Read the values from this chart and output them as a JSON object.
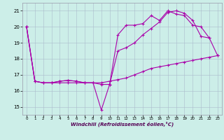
{
  "xlabel": "Windchill (Refroidissement éolien,°C)",
  "x_hours": [
    0,
    1,
    2,
    3,
    4,
    5,
    6,
    7,
    8,
    9,
    10,
    11,
    12,
    13,
    14,
    15,
    16,
    17,
    18,
    19,
    20,
    21,
    22,
    23
  ],
  "line1": [
    20.0,
    16.6,
    16.5,
    16.5,
    16.6,
    16.65,
    16.6,
    16.5,
    16.5,
    14.8,
    16.4,
    19.5,
    20.1,
    20.1,
    20.2,
    20.7,
    20.4,
    21.0,
    20.8,
    20.7,
    20.1,
    20.0,
    19.3,
    null
  ],
  "line2": [
    20.0,
    16.6,
    16.5,
    16.5,
    16.6,
    16.65,
    16.6,
    16.5,
    16.5,
    16.4,
    16.4,
    18.5,
    18.7,
    19.0,
    19.5,
    19.9,
    20.3,
    20.9,
    21.0,
    20.85,
    20.4,
    19.4,
    19.3,
    18.2
  ],
  "line3": [
    20.0,
    16.6,
    16.5,
    16.5,
    16.5,
    16.5,
    16.5,
    16.5,
    16.5,
    16.5,
    16.6,
    16.7,
    16.8,
    17.0,
    17.2,
    17.4,
    17.5,
    17.6,
    17.7,
    17.8,
    17.9,
    18.0,
    18.1,
    18.2
  ],
  "line_color": "#aa00aa",
  "bg_color": "#cceee8",
  "grid_color": "#aabbcc",
  "ylim": [
    14.5,
    21.5
  ],
  "yticks": [
    15,
    16,
    17,
    18,
    19,
    20,
    21
  ],
  "xticks": [
    0,
    1,
    2,
    3,
    4,
    5,
    6,
    7,
    8,
    9,
    10,
    11,
    12,
    13,
    14,
    15,
    16,
    17,
    18,
    19,
    20,
    21,
    22,
    23
  ]
}
